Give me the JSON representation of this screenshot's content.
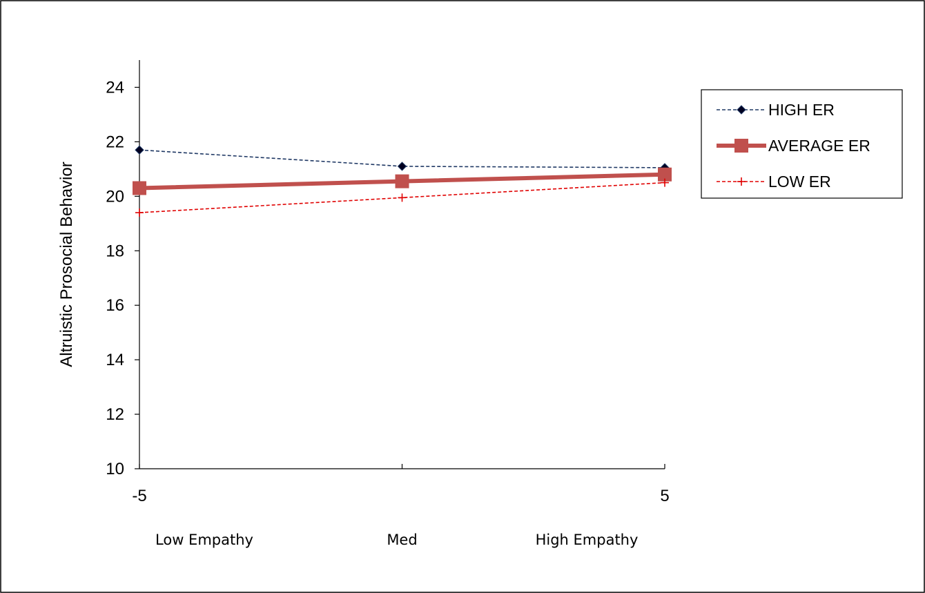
{
  "chart_data": {
    "type": "line",
    "title": "",
    "xlabel": "",
    "ylabel": "Altruistic Prosocial Behavior",
    "x": [
      -5,
      0,
      5
    ],
    "x_tick_labels": [
      "-5",
      "",
      "5"
    ],
    "categories": [
      "Low Empathy",
      "Med",
      "High Empathy"
    ],
    "ylim": [
      10,
      25
    ],
    "yticks": [
      10,
      12,
      14,
      16,
      18,
      20,
      22,
      24
    ],
    "y_tick_labels": [
      "10",
      "12",
      "14",
      "16",
      "18",
      "20",
      "22",
      "24"
    ],
    "grid": false,
    "legend": "right",
    "series": [
      {
        "name": "HIGH ER",
        "values": [
          21.7,
          21.1,
          21.05
        ],
        "color": "#1f3864",
        "style": "dashed",
        "marker": "diamond"
      },
      {
        "name": "AVERAGE ER",
        "values": [
          20.3,
          20.55,
          20.8
        ],
        "color": "#c0504d",
        "style": "solid-thick",
        "marker": "square"
      },
      {
        "name": "LOW ER",
        "values": [
          19.4,
          19.95,
          20.5
        ],
        "color": "#e00000",
        "style": "dashed",
        "marker": "plus"
      }
    ]
  }
}
